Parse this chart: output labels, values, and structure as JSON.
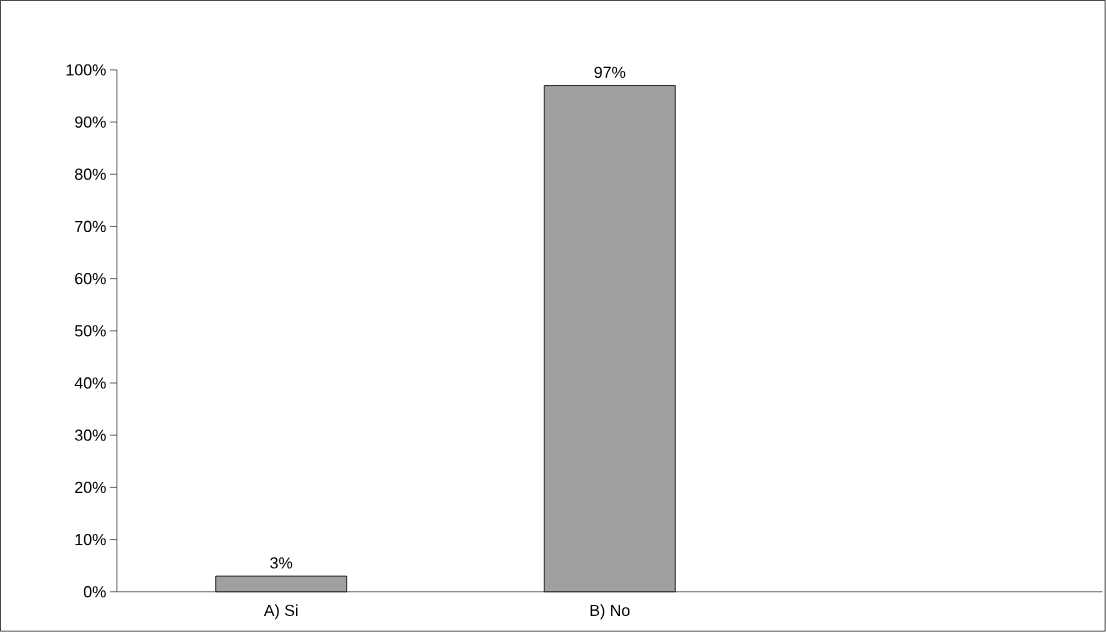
{
  "chart_data": {
    "type": "bar",
    "categories": [
      "A) Si",
      "B) No",
      null
    ],
    "values": [
      3,
      97,
      null
    ],
    "value_labels": [
      "3%",
      "97%",
      null
    ],
    "color": "#a0a0a0",
    "ylim": [
      0,
      100
    ],
    "yticks": [
      {
        "value": 0,
        "label": "0%"
      },
      {
        "value": 10,
        "label": "10%"
      },
      {
        "value": 20,
        "label": "20%"
      },
      {
        "value": 30,
        "label": "30%"
      },
      {
        "value": 40,
        "label": "40%"
      },
      {
        "value": 50,
        "label": "50%"
      },
      {
        "value": 60,
        "label": "60%"
      },
      {
        "value": 70,
        "label": "70%"
      },
      {
        "value": 80,
        "label": "80%"
      },
      {
        "value": 90,
        "label": "90%"
      },
      {
        "value": 100,
        "label": "100%"
      }
    ]
  }
}
